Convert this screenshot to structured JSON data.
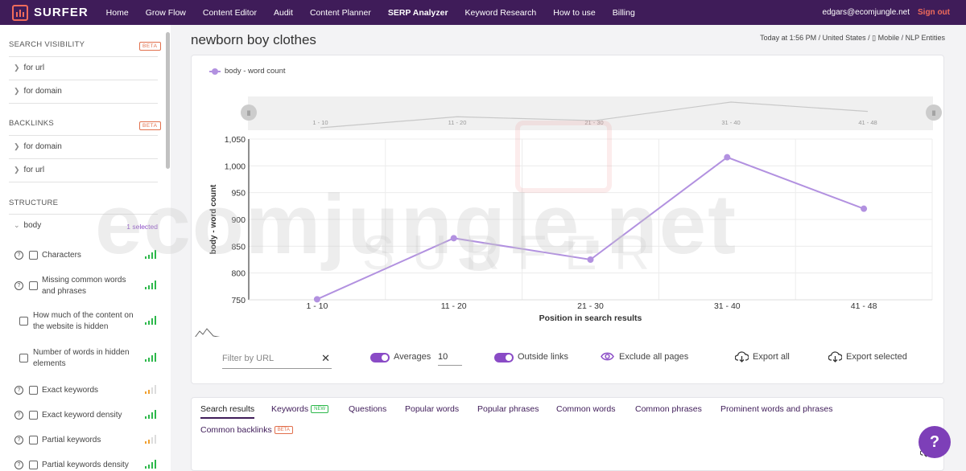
{
  "nav": {
    "logo_text": "SURFER",
    "items": [
      "Home",
      "Grow Flow",
      "Content Editor",
      "Audit",
      "Content Planner",
      "SERP Analyzer",
      "Keyword Research",
      "How to use",
      "Billing"
    ],
    "active_index": 5,
    "user_email": "edgars@ecomjungle.net",
    "sign_out": "Sign out"
  },
  "sidebar": {
    "search_visibility": {
      "heading": "SEARCH VISIBILITY",
      "badge": "BETA",
      "items": [
        "for url",
        "for domain"
      ]
    },
    "backlinks": {
      "heading": "BACKLINKS",
      "badge": "BETA",
      "items": [
        "for domain",
        "for url"
      ]
    },
    "structure": {
      "heading": "STRUCTURE",
      "group_label": "body",
      "group_selected": "1 selected",
      "metrics": [
        {
          "label": "Characters",
          "help": true,
          "signal": "green"
        },
        {
          "label": "Missing common words and phrases",
          "help": true,
          "signal": "green"
        },
        {
          "label": "How much of the content on the website is hidden",
          "help": false,
          "signal": "green"
        },
        {
          "label": "Number of words in hidden elements",
          "help": false,
          "signal": "green"
        },
        {
          "label": "Exact keywords",
          "help": true,
          "signal": "orange"
        },
        {
          "label": "Exact keyword density",
          "help": true,
          "signal": "green"
        },
        {
          "label": "Partial keywords",
          "help": true,
          "signal": "orange"
        },
        {
          "label": "Partial keywords density",
          "help": true,
          "signal": "green"
        }
      ]
    }
  },
  "page": {
    "title": "newborn boy clothes",
    "meta": "Today at 1:56 PM / United States / ▯ Mobile / NLP Entities"
  },
  "chart_data": {
    "type": "line",
    "series": [
      {
        "name": "body - word count",
        "values": [
          751,
          865,
          825,
          1016,
          920
        ]
      }
    ],
    "categories": [
      "1 - 10",
      "11 - 20",
      "21 - 30",
      "31 - 40",
      "41 - 48"
    ],
    "xlabel": "Position in search results",
    "ylabel": "body - word count",
    "ylim": [
      750,
      1050
    ],
    "yticks": [
      "1,050",
      "1,000",
      "950",
      "900",
      "850",
      "800",
      "750"
    ],
    "navigator_values": [
      751,
      865,
      825,
      1016,
      920
    ],
    "grid": true,
    "legend": "top-left"
  },
  "watermark": {
    "main": "ecomjungle.net",
    "secondary": "SURFER"
  },
  "colors": {
    "nav_bg": "#3f1c59",
    "accent": "#8a4bc6",
    "line": "#b291e0",
    "signout": "#f06b5b",
    "green": "#2db84b",
    "orange": "#f0a030"
  },
  "controls": {
    "filter_placeholder": "Filter by URL",
    "clear_icon": "✕",
    "averages_label": "Averages",
    "averages_value": "10",
    "outside_links_label": "Outside links",
    "exclude_label": "Exclude all pages",
    "export_all": "Export all",
    "export_selected": "Export selected"
  },
  "tabs": [
    {
      "label": "Search results",
      "active": true
    },
    {
      "label": "Keywords",
      "badge": "NEW"
    },
    {
      "label": "Questions"
    },
    {
      "label": "Popular words"
    },
    {
      "label": "Popular phrases"
    },
    {
      "label": "Common words"
    },
    {
      "label": "Common phrases"
    },
    {
      "label": "Prominent words and phrases"
    },
    {
      "label": "Common backlinks",
      "badge": "BETA"
    }
  ],
  "tab_panel": {
    "export_partial": "E"
  },
  "help_fab": "?"
}
